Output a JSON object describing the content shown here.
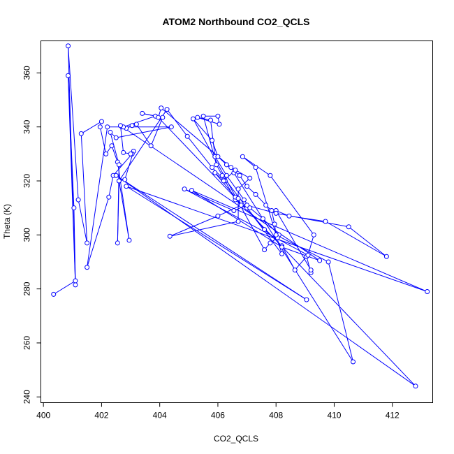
{
  "chart_data": {
    "type": "scatter",
    "title": "ATOM2 Northbound CO2_QCLS",
    "xlabel": "CO2_QCLS",
    "ylabel": "Theta (K)",
    "xlim": [
      399.9,
      413.4
    ],
    "ylim": [
      238.0,
      372.0
    ],
    "xticks": [
      400,
      402,
      404,
      406,
      408,
      410,
      412
    ],
    "yticks": [
      240,
      260,
      280,
      300,
      320,
      340,
      360
    ],
    "color": "#0000ff",
    "line": true,
    "marker": "open-circle",
    "grid": false,
    "series": [
      {
        "points": [
          [
            400.35,
            278.0
          ],
          [
            401.1,
            283.0
          ],
          [
            401.05,
            310.0
          ],
          [
            400.85,
            359.0
          ],
          [
            401.1,
            281.5
          ],
          [
            400.85,
            370.0
          ],
          [
            401.2,
            313.0
          ],
          [
            401.5,
            297.0
          ],
          [
            401.3,
            337.5
          ],
          [
            402.0,
            342.0
          ],
          [
            401.95,
            340.0
          ],
          [
            402.15,
            330.0
          ],
          [
            402.35,
            333.0
          ],
          [
            402.55,
            327.0
          ],
          [
            402.95,
            298.0
          ],
          [
            402.6,
            320.0
          ],
          [
            402.8,
            320.5
          ],
          [
            403.1,
            331.0
          ],
          [
            403.05,
            330.0
          ],
          [
            402.4,
            322.0
          ],
          [
            402.25,
            314.0
          ],
          [
            401.5,
            288.0
          ],
          [
            402.2,
            340.0
          ],
          [
            402.7,
            340.0
          ],
          [
            402.85,
            339.5
          ],
          [
            403.05,
            340.5
          ],
          [
            403.2,
            341.0
          ],
          [
            403.7,
            333.0
          ],
          [
            404.1,
            343.5
          ],
          [
            403.4,
            345.0
          ],
          [
            403.85,
            344.0
          ],
          [
            402.75,
            340.0
          ],
          [
            404.4,
            340.0
          ],
          [
            402.5,
            336.0
          ],
          [
            402.3,
            338.0
          ],
          [
            402.6,
            326.0
          ],
          [
            402.55,
            297.0
          ],
          [
            402.6,
            320.0
          ],
          [
            404.25,
            346.5
          ],
          [
            404.95,
            336.5
          ],
          [
            405.8,
            325.0
          ],
          [
            406.25,
            320.0
          ],
          [
            406.6,
            313.0
          ],
          [
            407.0,
            310.0
          ],
          [
            407.6,
            302.0
          ],
          [
            408.2,
            296.0
          ],
          [
            408.65,
            287.0
          ],
          [
            409.05,
            292.0
          ],
          [
            409.2,
            286.0
          ],
          [
            409.2,
            287.0
          ],
          [
            408.0,
            309.0
          ],
          [
            408.45,
            307.0
          ],
          [
            409.7,
            305.0
          ],
          [
            411.8,
            292.0
          ],
          [
            410.5,
            303.0
          ],
          [
            408.0,
            308.0
          ],
          [
            407.0,
            311.0
          ],
          [
            406.55,
            309.0
          ],
          [
            404.85,
            317.0
          ],
          [
            409.1,
            292.5
          ],
          [
            409.3,
            300.0
          ],
          [
            407.8,
            322.0
          ],
          [
            406.85,
            329.0
          ],
          [
            407.3,
            325.0
          ],
          [
            408.2,
            293.0
          ],
          [
            406.15,
            322.0
          ],
          [
            405.95,
            326.0
          ],
          [
            405.5,
            344.0
          ],
          [
            406.0,
            344.0
          ],
          [
            406.05,
            341.0
          ],
          [
            405.3,
            343.5
          ],
          [
            405.75,
            342.5
          ],
          [
            405.9,
            329.0
          ],
          [
            406.3,
            322.0
          ],
          [
            406.9,
            313.0
          ],
          [
            407.1,
            310.0
          ],
          [
            407.55,
            306.0
          ],
          [
            408.1,
            300.0
          ],
          [
            408.05,
            299.0
          ],
          [
            407.8,
            297.0
          ],
          [
            407.6,
            294.5
          ],
          [
            405.15,
            343.0
          ],
          [
            405.8,
            335.0
          ],
          [
            406.0,
            329.0
          ],
          [
            406.3,
            326.0
          ],
          [
            406.75,
            322.0
          ],
          [
            407.0,
            318.0
          ],
          [
            407.3,
            315.0
          ],
          [
            407.65,
            311.0
          ],
          [
            407.85,
            309.0
          ],
          [
            407.95,
            304.0
          ],
          [
            408.0,
            300.0
          ],
          [
            409.8,
            290.0
          ],
          [
            410.65,
            253.0
          ],
          [
            406.55,
            323.0
          ],
          [
            406.6,
            324.0
          ],
          [
            406.2,
            320.0
          ],
          [
            405.9,
            323.0
          ],
          [
            406.6,
            314.0
          ],
          [
            406.7,
            313.5
          ],
          [
            406.8,
            311.0
          ],
          [
            406.0,
            307.0
          ],
          [
            404.35,
            299.5
          ],
          [
            406.7,
            305.0
          ],
          [
            406.7,
            317.0
          ],
          [
            407.1,
            321.0
          ],
          [
            406.45,
            325.0
          ],
          [
            404.05,
            347.0
          ],
          [
            403.95,
            343.5
          ],
          [
            412.8,
            244.0
          ],
          [
            402.5,
            322.0
          ],
          [
            409.05,
            276.0
          ],
          [
            402.85,
            318.0
          ],
          [
            413.2,
            279.0
          ],
          [
            405.1,
            316.5
          ],
          [
            408.2,
            295.5
          ],
          [
            409.5,
            290.5
          ],
          [
            402.65,
            340.5
          ],
          [
            402.75,
            330.5
          ],
          [
            403.0,
            330.0
          ]
        ]
      }
    ]
  }
}
